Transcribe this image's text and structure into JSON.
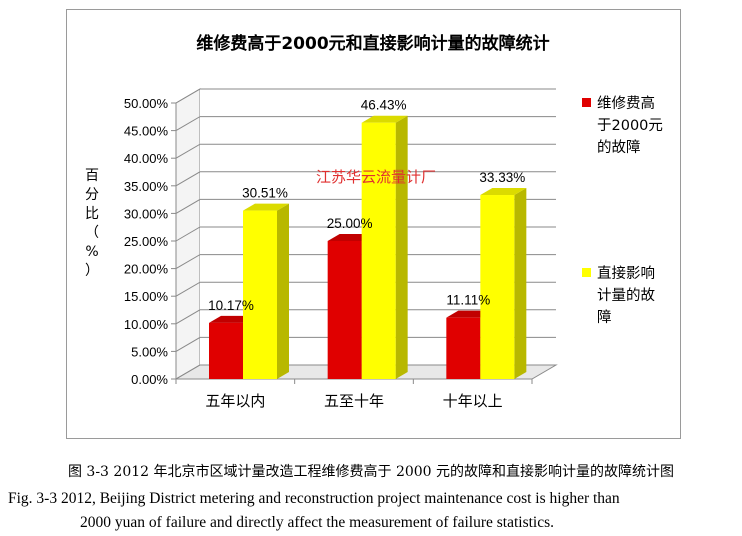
{
  "chart_data": {
    "type": "bar",
    "title": "维修费高于2000元和直接影响计量的故障统计",
    "ylabel": "百分比（%）",
    "categories": [
      "五年以内",
      "五至十年",
      "十年以上"
    ],
    "series": [
      {
        "name": "维修费高于2000元的故障",
        "values": [
          10.17,
          25.0,
          11.11
        ],
        "labels": [
          "10.17%",
          "25.00%",
          "11.11%"
        ],
        "color": "#e00000"
      },
      {
        "name": "直接影响计量的故障",
        "values": [
          30.51,
          46.43,
          33.33
        ],
        "labels": [
          "30.51%",
          "46.43%",
          "33.33%"
        ],
        "color": "#ffff00"
      }
    ],
    "yticks": [
      "0.00%",
      "5.00%",
      "10.00%",
      "15.00%",
      "20.00%",
      "25.00%",
      "30.00%",
      "35.00%",
      "40.00%",
      "45.00%",
      "50.00%"
    ],
    "ylim": [
      0,
      50
    ],
    "legend_position": "right",
    "chart_type_detail": "3D clustered column"
  },
  "watermark": "江苏华云流量计厂",
  "caption": {
    "cn": "图 3-3 2012 年北京市区域计量改造工程维修费高于 2000 元的故障和直接影响计量的故障统计图",
    "en_line1": "Fig. 3-3    2012, Beijing District metering and reconstruction project maintenance cost is higher than",
    "en_line2": "2000 yuan of failure and directly affect the measurement of failure statistics."
  }
}
